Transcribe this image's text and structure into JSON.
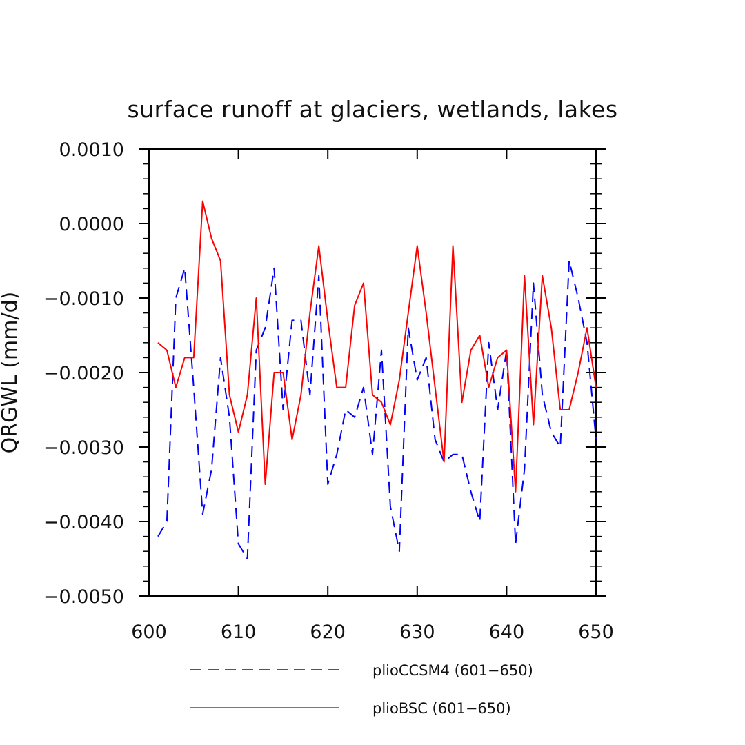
{
  "chart_data": {
    "type": "line",
    "title": "surface runoff at glaciers, wetlands, lakes",
    "ylabel": "QRGWL  (mm/d)",
    "xlabel": "",
    "xlim": [
      600,
      650
    ],
    "ylim": [
      -0.005,
      0.001
    ],
    "xticks": [
      600,
      610,
      620,
      630,
      640,
      650
    ],
    "xtick_labels": [
      "600",
      "610",
      "620",
      "630",
      "640",
      "650"
    ],
    "yticks": [
      0.001,
      0.0,
      -0.001,
      -0.002,
      -0.003,
      -0.004,
      -0.005
    ],
    "ytick_labels": [
      "0.0010",
      "0.0000",
      "−0.0010",
      "−0.0020",
      "−0.0030",
      "−0.0040",
      "−0.0050"
    ],
    "grid": false,
    "legend_position": "bottom",
    "series": [
      {
        "name": "plioCCSM4 (601−650)",
        "color": "#0000ff",
        "dash": "dashed",
        "x": [
          601,
          602,
          603,
          604,
          605,
          606,
          607,
          608,
          609,
          610,
          611,
          612,
          613,
          614,
          615,
          616,
          617,
          618,
          619,
          620,
          621,
          622,
          623,
          624,
          625,
          626,
          627,
          628,
          629,
          630,
          631,
          632,
          633,
          634,
          635,
          636,
          637,
          638,
          639,
          640,
          641,
          642,
          643,
          644,
          645,
          646,
          647,
          648,
          649,
          650
        ],
        "values": [
          -0.0042,
          -0.004,
          -0.001,
          -0.0006,
          -0.0022,
          -0.0039,
          -0.0033,
          -0.0018,
          -0.0026,
          -0.0043,
          -0.0045,
          -0.0017,
          -0.0014,
          -0.0006,
          -0.0025,
          -0.0013,
          -0.0013,
          -0.0023,
          -0.0007,
          -0.0035,
          -0.0031,
          -0.0025,
          -0.0026,
          -0.0022,
          -0.0031,
          -0.0017,
          -0.0038,
          -0.0044,
          -0.0014,
          -0.0021,
          -0.0018,
          -0.0029,
          -0.0032,
          -0.0031,
          -0.0031,
          -0.0036,
          -0.004,
          -0.0016,
          -0.0025,
          -0.0017,
          -0.0043,
          -0.0033,
          -0.0008,
          -0.0023,
          -0.0028,
          -0.003,
          -0.0005,
          -0.001,
          -0.0016,
          -0.0029
        ]
      },
      {
        "name": "plioBSC (601−650)",
        "color": "#ff0000",
        "dash": "solid",
        "x": [
          601,
          602,
          603,
          604,
          605,
          606,
          607,
          608,
          609,
          610,
          611,
          612,
          613,
          614,
          615,
          616,
          617,
          618,
          619,
          620,
          621,
          622,
          623,
          624,
          625,
          626,
          627,
          628,
          629,
          630,
          631,
          632,
          633,
          634,
          635,
          636,
          637,
          638,
          639,
          640,
          641,
          642,
          643,
          644,
          645,
          646,
          647,
          648,
          649,
          650
        ],
        "values": [
          -0.0016,
          -0.0017,
          -0.0022,
          -0.0018,
          -0.0018,
          0.0003,
          -0.0002,
          -0.0005,
          -0.0023,
          -0.0028,
          -0.0023,
          -0.001,
          -0.0035,
          -0.002,
          -0.002,
          -0.0029,
          -0.0023,
          -0.0012,
          -0.0003,
          -0.0013,
          -0.0022,
          -0.0022,
          -0.0011,
          -0.0008,
          -0.0023,
          -0.0024,
          -0.0027,
          -0.0021,
          -0.0012,
          -0.0003,
          -0.0012,
          -0.0022,
          -0.0032,
          -0.0003,
          -0.0024,
          -0.0017,
          -0.0015,
          -0.0022,
          -0.0018,
          -0.0017,
          -0.0036,
          -0.0007,
          -0.0027,
          -0.0007,
          -0.0014,
          -0.0025,
          -0.0025,
          -0.002,
          -0.0014,
          -0.0022
        ]
      }
    ]
  }
}
